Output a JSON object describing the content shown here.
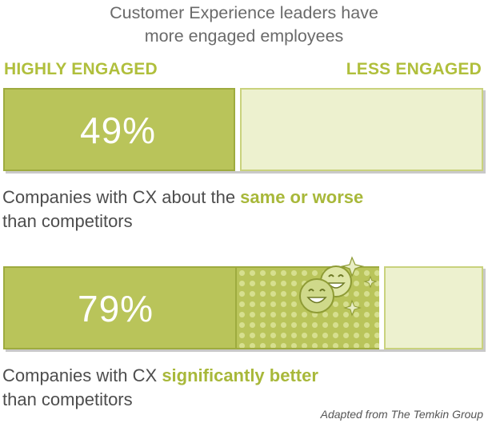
{
  "title": {
    "line1": "Customer Experience leaders have",
    "line2": "more engaged employees"
  },
  "legend": {
    "highly_engaged": "HIGHLY ENGAGED",
    "less_engaged": "LESS ENGAGED"
  },
  "colors": {
    "accent": "#b0bf3c",
    "bar_fill": "#b9c45a",
    "bar_empty": "#edf1cf"
  },
  "chart_data": {
    "type": "bar",
    "orientation": "horizontal-stacked",
    "title": "Customer Experience leaders have more engaged employees",
    "series_labels": [
      "HIGHLY ENGAGED",
      "LESS ENGAGED"
    ],
    "bars": [
      {
        "value": 49,
        "value_label": "49%",
        "caption_pre": "Companies with CX about the ",
        "caption_bold": "same or worse",
        "caption_post": "than competitors"
      },
      {
        "value": 79,
        "value_label": "79%",
        "caption_pre": "Companies with CX ",
        "caption_bold": "significantly better",
        "caption_post": "than competitors"
      }
    ],
    "ylim": [
      0,
      100
    ],
    "grid": false
  },
  "source": "Adapted from The Temkin Group",
  "icons": {
    "smiley": "laughing-faces-icon"
  }
}
